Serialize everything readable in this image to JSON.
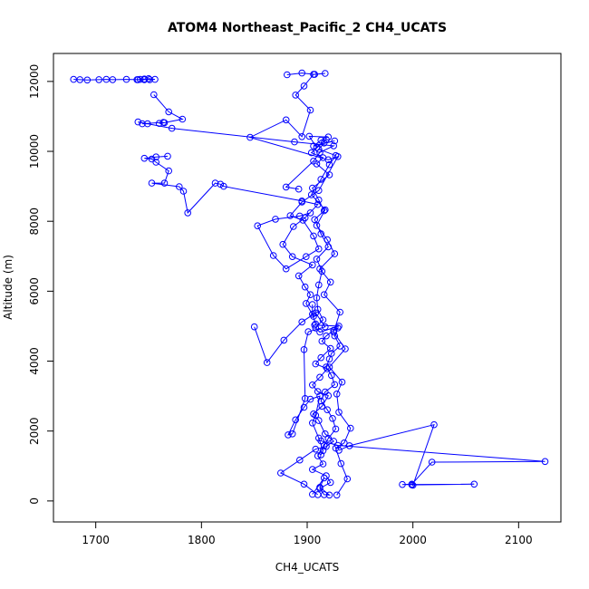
{
  "chart_data": {
    "type": "scatter",
    "title": "ATOM4 Northeast_Pacific_2 CH4_UCATS",
    "xlabel": "CH4_UCATS",
    "ylabel": "Altitude (m)",
    "xlim": [
      1660,
      2140
    ],
    "ylim": [
      -600,
      12800
    ],
    "xticks": [
      1700,
      1800,
      1900,
      2000,
      2100
    ],
    "yticks": [
      0,
      2000,
      4000,
      6000,
      8000,
      10000,
      12000
    ],
    "grid": false,
    "legend": "none",
    "color": "#0000ff",
    "marker": "open-circle",
    "series": [
      {
        "x": [
          1928,
          1938,
          1932,
          1927,
          1935,
          1941,
          1930,
          1928,
          1933,
          1921,
          1936,
          1925,
          1931,
          1916,
          1922,
          1912,
          1926,
          1919,
          1909,
          1917,
          1904,
          1913,
          1921,
          1927,
          1911,
          1916,
          1926,
          1906,
          1913,
          1920,
          1902,
          1909,
          1918,
          1904,
          1915,
          1909,
          1921,
          1905,
          1911,
          1916,
          1907,
          1913,
          1920,
          1909,
          1914,
          1911,
          1909,
          1910,
          1915,
          1908,
          1912,
          1930,
          1907,
          1908,
          1905,
          1905
        ],
        "y": [
          170,
          630,
          1070,
          1510,
          1660,
          2080,
          2540,
          3060,
          3400,
          3830,
          4350,
          4830,
          5400,
          5900,
          6260,
          6640,
          7070,
          7470,
          7880,
          8330,
          8760,
          9200,
          9620,
          9880,
          10060,
          10240,
          10300,
          10150,
          10320,
          10410,
          10430,
          10110,
          10340,
          9960,
          9820,
          9640,
          9330,
          8950,
          8610,
          8300,
          8050,
          7640,
          7270,
          6920,
          6570,
          6180,
          5810,
          5480,
          5180,
          4950,
          4830,
          5000,
          5030,
          5060,
          5340,
          5620
        ]
      },
      {
        "x": [
          1910,
          1897,
          1875,
          1893,
          1908,
          1918,
          1925,
          1917,
          1911,
          1906,
          1914,
          1920,
          1910,
          1905,
          1912,
          1919,
          1908,
          1913,
          1922,
          1914,
          1918,
          1925,
          1929,
          1926,
          1931,
          1923,
          1921,
          1918,
          1923,
          1926,
          1917,
          1913,
          1919,
          1924,
          1927,
          1920,
          1916,
          1910,
          1915,
          1905,
          1918,
          1922,
          1912,
          1916,
          1921,
          1912,
          1916,
          1905
        ],
        "y": [
          180,
          480,
          800,
          1170,
          1480,
          1560,
          1710,
          1920,
          2300,
          2490,
          2710,
          3010,
          3130,
          3320,
          3540,
          3780,
          3920,
          4100,
          4360,
          4570,
          4720,
          4880,
          4950,
          4720,
          4430,
          4220,
          4060,
          3830,
          3590,
          3330,
          3120,
          2860,
          2610,
          2360,
          2060,
          1790,
          1580,
          1290,
          1060,
          900,
          720,
          530,
          360,
          180,
          170,
          390,
          660,
          190
        ]
      },
      {
        "x": [
          1913,
          1929,
          2125,
          2018,
          1999,
          1990,
          2058,
          1999,
          2000,
          2020,
          1940,
          1930
        ],
        "y": [
          1720,
          1590,
          1130,
          1110,
          480,
          470,
          480,
          460,
          450,
          2180,
          1580,
          1450
        ]
      },
      {
        "x": [
          1679,
          1685,
          1692,
          1703,
          1710,
          1716,
          1729,
          1740,
          1746,
          1751,
          1756,
          1750,
          1746,
          1742,
          1739
        ],
        "y": [
          12060,
          12050,
          12040,
          12050,
          12060,
          12050,
          12060,
          12050,
          12070,
          12050,
          12060,
          12080,
          12050,
          12060,
          12050
        ]
      },
      {
        "x": [
          1881,
          1895,
          1907,
          1917,
          1906,
          1897,
          1889,
          1903,
          1895,
          1880,
          1846,
          1920,
          1929,
          1911,
          1895,
          1884,
          1896,
          1906,
          1911,
          1899,
          1880,
          1868,
          1853,
          1870,
          1893,
          1903
        ],
        "y": [
          12190,
          12240,
          12200,
          12230,
          12200,
          11870,
          11610,
          11180,
          10420,
          10900,
          10400,
          9760,
          9850,
          8880,
          8550,
          8160,
          8030,
          7580,
          7210,
          6990,
          6640,
          7020,
          7870,
          8060,
          8150,
          8240
        ]
      },
      {
        "x": [
          1755,
          1769,
          1782,
          1765,
          1760,
          1764,
          1744,
          1749,
          1740,
          1772,
          1888,
          1925,
          1912,
          1906,
          1880,
          1892
        ],
        "y": [
          11620,
          11130,
          10920,
          10820,
          10800,
          10830,
          10790,
          10790,
          10840,
          10660,
          10270,
          10160,
          9970,
          9720,
          8980,
          8920
        ]
      },
      {
        "x": [
          1768,
          1757,
          1746,
          1753,
          1757,
          1769,
          1765,
          1753,
          1779,
          1783,
          1787,
          1813,
          1818,
          1821,
          1895,
          1910,
          1898,
          1887,
          1877,
          1886,
          1905,
          1892,
          1898,
          1903,
          1899,
          1906
        ],
        "y": [
          9860,
          9840,
          9800,
          9780,
          9690,
          9440,
          9090,
          9090,
          8990,
          8860,
          8240,
          9090,
          9060,
          9000,
          8580,
          8480,
          8100,
          7850,
          7340,
          6990,
          6750,
          6440,
          6120,
          5900,
          5650,
          5280
        ]
      },
      {
        "x": [
          1850,
          1862,
          1878,
          1895,
          1908,
          1917,
          1901,
          1897,
          1898,
          1886,
          1882,
          1889,
          1897,
          1903,
          1912,
          1908,
          1905,
          1911,
          1915,
          1913
        ],
        "y": [
          4980,
          3960,
          4600,
          5120,
          5380,
          4980,
          4840,
          4330,
          2930,
          1920,
          1890,
          2320,
          2680,
          2910,
          3000,
          2450,
          2230,
          1800,
          1440,
          1320
        ]
      }
    ]
  }
}
